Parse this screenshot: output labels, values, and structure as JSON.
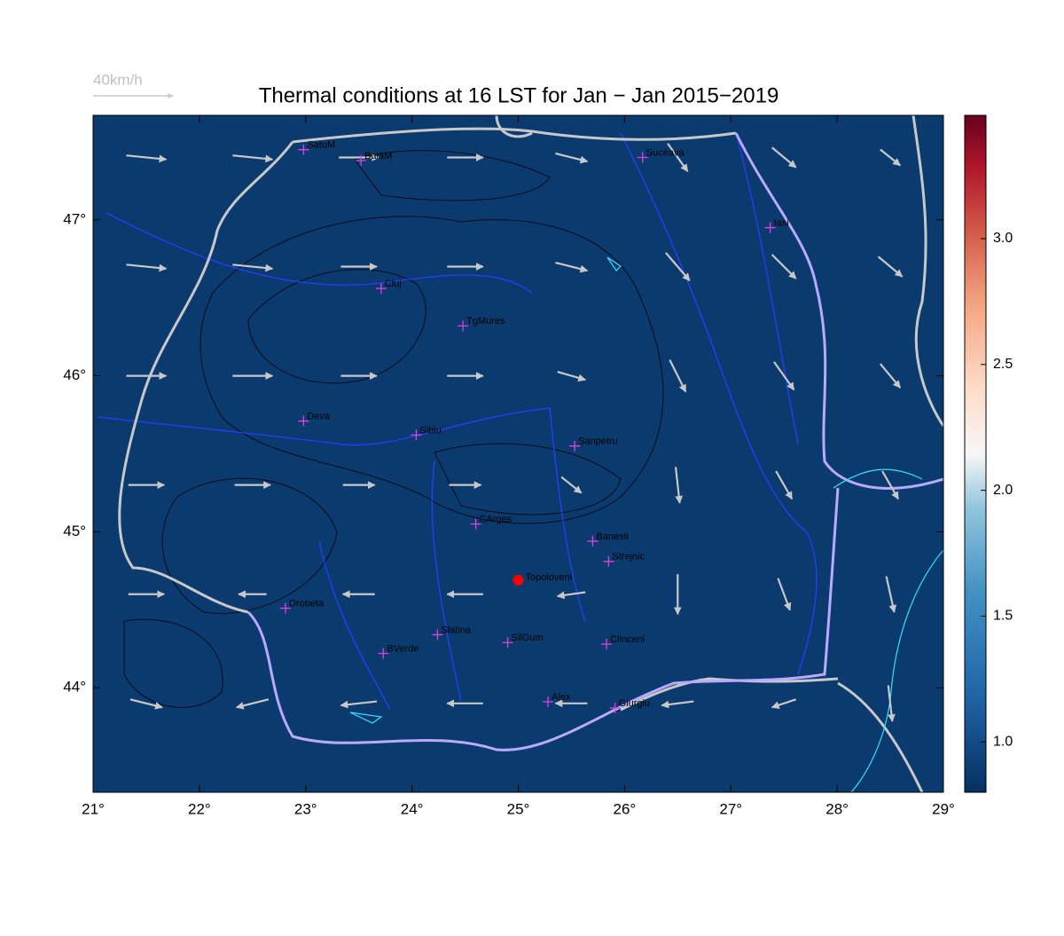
{
  "title": "Thermal conditions at 16 LST for Jan − Jan  2015−2019",
  "reference_vector": {
    "value": 40,
    "label": "40km/h"
  },
  "map": {
    "xlim": [
      21,
      29
    ],
    "ylim": [
      43.33,
      47.67
    ],
    "xticks": [
      {
        "value": 21,
        "label": "21°"
      },
      {
        "value": 22,
        "label": "22°"
      },
      {
        "value": 23,
        "label": "23°"
      },
      {
        "value": 24,
        "label": "24°"
      },
      {
        "value": 25,
        "label": "25°"
      },
      {
        "value": 26,
        "label": "26°"
      },
      {
        "value": 27,
        "label": "27°"
      },
      {
        "value": 28,
        "label": "28°"
      },
      {
        "value": 29,
        "label": "29°"
      }
    ],
    "yticks": [
      {
        "value": 44,
        "label": "44°"
      },
      {
        "value": 45,
        "label": "45°"
      },
      {
        "value": 46,
        "label": "46°"
      },
      {
        "value": 47,
        "label": "47°"
      }
    ],
    "background": "#0b3a6e",
    "stations": [
      {
        "name": "SatuM",
        "lon": 22.98,
        "lat": 47.45
      },
      {
        "name": "BaiaM",
        "lon": 23.52,
        "lat": 47.38
      },
      {
        "name": "Suceava",
        "lon": 26.17,
        "lat": 47.4
      },
      {
        "name": "Iasi",
        "lon": 27.37,
        "lat": 46.95
      },
      {
        "name": "Cluj",
        "lon": 23.71,
        "lat": 46.56
      },
      {
        "name": "TgMures",
        "lon": 24.48,
        "lat": 46.32
      },
      {
        "name": "Deva",
        "lon": 22.98,
        "lat": 45.71
      },
      {
        "name": "Sibiu",
        "lon": 24.04,
        "lat": 45.62
      },
      {
        "name": "Sanpetru",
        "lon": 25.53,
        "lat": 45.55
      },
      {
        "name": "CArges",
        "lon": 24.6,
        "lat": 45.05
      },
      {
        "name": "Banesti",
        "lon": 25.7,
        "lat": 44.94
      },
      {
        "name": "Strejnic",
        "lon": 25.85,
        "lat": 44.81
      },
      {
        "name": "Drobeta",
        "lon": 22.81,
        "lat": 44.51
      },
      {
        "name": "Slatina",
        "lon": 24.24,
        "lat": 44.34
      },
      {
        "name": "SilGum",
        "lon": 24.9,
        "lat": 44.29
      },
      {
        "name": "Clinceni",
        "lon": 25.83,
        "lat": 44.28
      },
      {
        "name": "BVerde",
        "lon": 23.73,
        "lat": 44.22
      },
      {
        "name": "Alex",
        "lon": 25.28,
        "lat": 43.91
      },
      {
        "name": "Giurgiu",
        "lon": 25.91,
        "lat": 43.87
      }
    ],
    "site": {
      "name": "Topoloveni",
      "lon": 25.0,
      "lat": 44.69
    },
    "wind": {
      "lon": [
        21.5,
        22.5,
        23.5,
        24.5,
        25.5,
        26.5,
        27.5,
        28.5
      ],
      "lat": [
        47.4,
        46.7,
        46.0,
        45.3,
        44.6,
        43.9
      ],
      "u": [
        [
          20,
          20,
          20,
          18,
          16,
          10,
          12,
          10
        ],
        [
          20,
          20,
          18,
          18,
          16,
          12,
          12,
          12
        ],
        [
          20,
          20,
          18,
          18,
          14,
          8,
          10,
          10
        ],
        [
          18,
          18,
          16,
          16,
          10,
          2,
          8,
          8
        ],
        [
          18,
          -14,
          -16,
          -18,
          -14,
          0,
          6,
          4
        ],
        [
          16,
          -16,
          -18,
          -18,
          -16,
          -16,
          -12,
          2
        ]
      ],
      "v": [
        [
          -2,
          -2,
          0,
          0,
          -4,
          -14,
          -10,
          -8
        ],
        [
          -2,
          -2,
          0,
          0,
          -4,
          -14,
          -12,
          -10
        ],
        [
          0,
          0,
          0,
          0,
          -4,
          -16,
          -14,
          -12
        ],
        [
          0,
          0,
          0,
          0,
          -8,
          -18,
          -14,
          -14
        ],
        [
          0,
          0,
          0,
          0,
          -2,
          -20,
          -16,
          -18
        ],
        [
          -4,
          -4,
          -2,
          0,
          0,
          -2,
          -4,
          -18
        ]
      ]
    }
  },
  "colorbar": {
    "ylim": [
      0.8,
      3.49
    ],
    "ticks": [
      {
        "value": 1,
        "label": "1.0"
      },
      {
        "value": 1.5,
        "label": "1.5"
      },
      {
        "value": 2,
        "label": "2.0"
      },
      {
        "value": 2.5,
        "label": "2.5"
      },
      {
        "value": 3,
        "label": "3.0"
      }
    ]
  }
}
